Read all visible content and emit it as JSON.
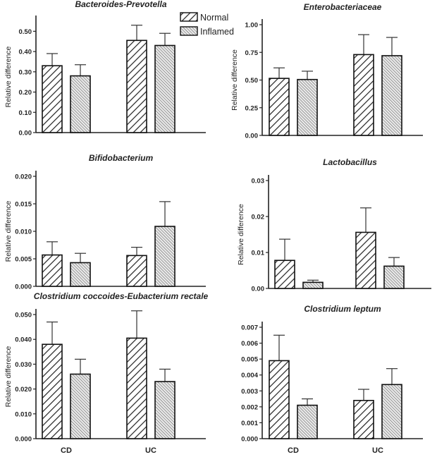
{
  "chart_data": [
    {
      "type": "bar",
      "title": "Bacteroides-Prevotella",
      "ylabel": "Relative difference",
      "ylim": [
        0,
        0.55
      ],
      "yticks": [
        "0.00",
        "0.10",
        "0.20",
        "0.30",
        "0.40",
        "0.50"
      ],
      "categories": [
        "CD",
        "UC"
      ],
      "show_xlabels": false,
      "series": [
        {
          "name": "Normal",
          "values": [
            0.33,
            0.455
          ],
          "errors": [
            0.06,
            0.075
          ]
        },
        {
          "name": "Inflamed",
          "values": [
            0.28,
            0.43
          ],
          "errors": [
            0.055,
            0.06
          ]
        }
      ],
      "legend": {
        "placement": "top-right",
        "entries": [
          "Normal",
          "Inflamed"
        ]
      }
    },
    {
      "type": "bar",
      "title": "Enterobacteriaceae",
      "ylabel": "Relative difference",
      "ylim": [
        0,
        1.0
      ],
      "yticks": [
        "0.00",
        "0.25",
        "0.50",
        "0.75",
        "1.00"
      ],
      "categories": [
        "CD",
        "UC"
      ],
      "show_xlabels": false,
      "series": [
        {
          "name": "Normal",
          "values": [
            0.515,
            0.73
          ],
          "errors": [
            0.095,
            0.18
          ]
        },
        {
          "name": "Inflamed",
          "values": [
            0.505,
            0.72
          ],
          "errors": [
            0.075,
            0.165
          ]
        }
      ]
    },
    {
      "type": "bar",
      "title": "Bifidobacterium",
      "ylabel": "Relative difference",
      "ylim": [
        0,
        0.02
      ],
      "yticks": [
        "0.000",
        "0.005",
        "0.010",
        "0.015",
        "0.020"
      ],
      "categories": [
        "CD",
        "UC"
      ],
      "show_xlabels": false,
      "series": [
        {
          "name": "Normal",
          "values": [
            0.0057,
            0.0056
          ],
          "errors": [
            0.0024,
            0.0015
          ]
        },
        {
          "name": "Inflamed",
          "values": [
            0.0043,
            0.0109
          ],
          "errors": [
            0.0017,
            0.0045
          ]
        }
      ]
    },
    {
      "type": "bar",
      "title": "Lactobacillus",
      "ylabel": "Relative difference",
      "ylim": [
        0,
        0.03
      ],
      "yticks": [
        "0.00",
        "0.01",
        "0.02",
        "0.03"
      ],
      "categories": [
        "CD",
        "UC"
      ],
      "show_xlabels": false,
      "series": [
        {
          "name": "Normal",
          "values": [
            0.0078,
            0.0156
          ],
          "errors": [
            0.0059,
            0.0068
          ]
        },
        {
          "name": "Inflamed",
          "values": [
            0.0017,
            0.0062
          ],
          "errors": [
            0.0006,
            0.0024
          ]
        }
      ]
    },
    {
      "type": "bar",
      "title": "Clostridium coccoides-Eubacterium rectale",
      "ylabel": "Relative difference",
      "ylim": [
        0,
        0.05
      ],
      "yticks": [
        "0.000",
        "0.010",
        "0.020",
        "0.030",
        "0.040",
        "0.050"
      ],
      "categories": [
        "CD",
        "UC"
      ],
      "show_xlabels": true,
      "series": [
        {
          "name": "Normal",
          "values": [
            0.038,
            0.0405
          ],
          "errors": [
            0.009,
            0.011
          ]
        },
        {
          "name": "Inflamed",
          "values": [
            0.026,
            0.023
          ],
          "errors": [
            0.006,
            0.005
          ]
        }
      ]
    },
    {
      "type": "bar",
      "title": "Clostridium leptum",
      "ylabel": "",
      "ylim": [
        0,
        0.007
      ],
      "yticks": [
        "0.000",
        "0.001",
        "0.002",
        "0.003",
        "0.004",
        "0.005",
        "0.006",
        "0.007"
      ],
      "categories": [
        "CD",
        "UC"
      ],
      "show_xlabels": true,
      "series": [
        {
          "name": "Normal",
          "values": [
            0.0049,
            0.0024
          ],
          "errors": [
            0.0016,
            0.0007
          ]
        },
        {
          "name": "Inflamed",
          "values": [
            0.0021,
            0.0034
          ],
          "errors": [
            0.0004,
            0.001
          ]
        }
      ]
    }
  ]
}
